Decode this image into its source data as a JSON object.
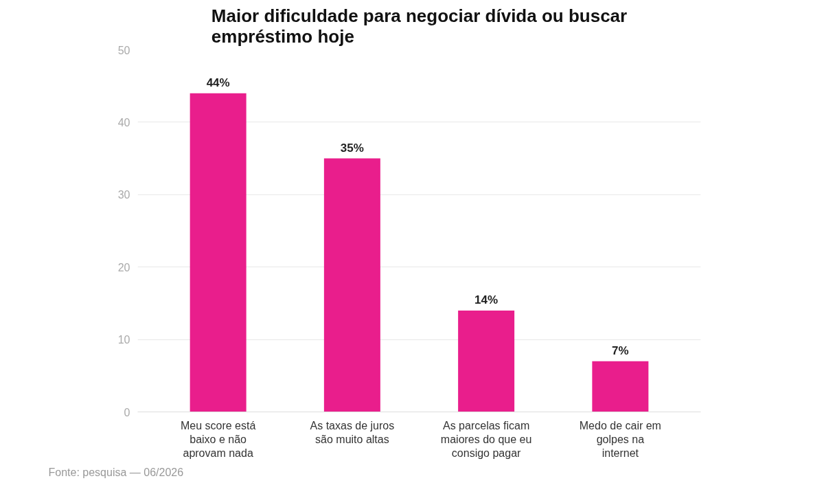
{
  "chart_data": {
    "type": "bar",
    "title": "Maior dificuldade para negociar dívida ou buscar empréstimo hoje",
    "categories": [
      "Meu score está baixo e não aprovam nada",
      "As taxas de juros são muito altas",
      "As parcelas ficam maiores do que eu consigo pagar",
      "Medo de cair em golpes na internet"
    ],
    "values": [
      44,
      35,
      14,
      7
    ],
    "value_labels": [
      "44%",
      "35%",
      "14%",
      "7%"
    ],
    "color": "#e91e8c",
    "ylim": [
      0,
      50
    ],
    "yticks": [
      0,
      10,
      20,
      30,
      40,
      50
    ],
    "grid": "y",
    "annotations": [
      "Fonte: pesquisa — 06/2026"
    ]
  }
}
